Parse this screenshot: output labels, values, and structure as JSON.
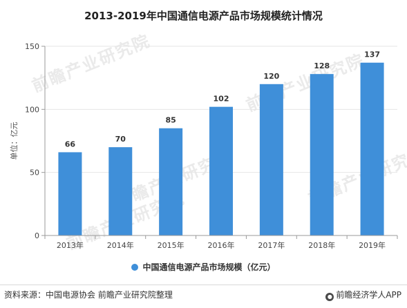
{
  "page": {
    "title": "2013-2019年中国通信电源产品市场规模统计情况",
    "source": "资料来源：中国电源协会 前瞻产业研究院整理",
    "brand": "前瞻经济学人APP",
    "watermark": "前瞻产业研究院"
  },
  "colors": {
    "bar": "#3f8fd9",
    "axis": "#9a9a9a",
    "grid": "#e6e6e6"
  },
  "icons": {
    "brand": "brand-logo-icon"
  },
  "chart_data": {
    "type": "bar",
    "title": "2013-2019年中国通信电源产品市场规模统计情况",
    "categories": [
      "2013年",
      "2014年",
      "2015年",
      "2016年",
      "2017年",
      "2018年",
      "2019年"
    ],
    "series": [
      {
        "name": "中国通信电源产品市场规模（亿元）",
        "values": [
          66,
          70,
          85,
          102,
          120,
          128,
          137
        ]
      }
    ],
    "ylabel": "单位：亿元",
    "xlabel": "",
    "ylim": [
      0,
      150
    ],
    "yticks": [
      0,
      50,
      100,
      150
    ],
    "grid": true,
    "legend": "bottom",
    "data_labels": true
  }
}
